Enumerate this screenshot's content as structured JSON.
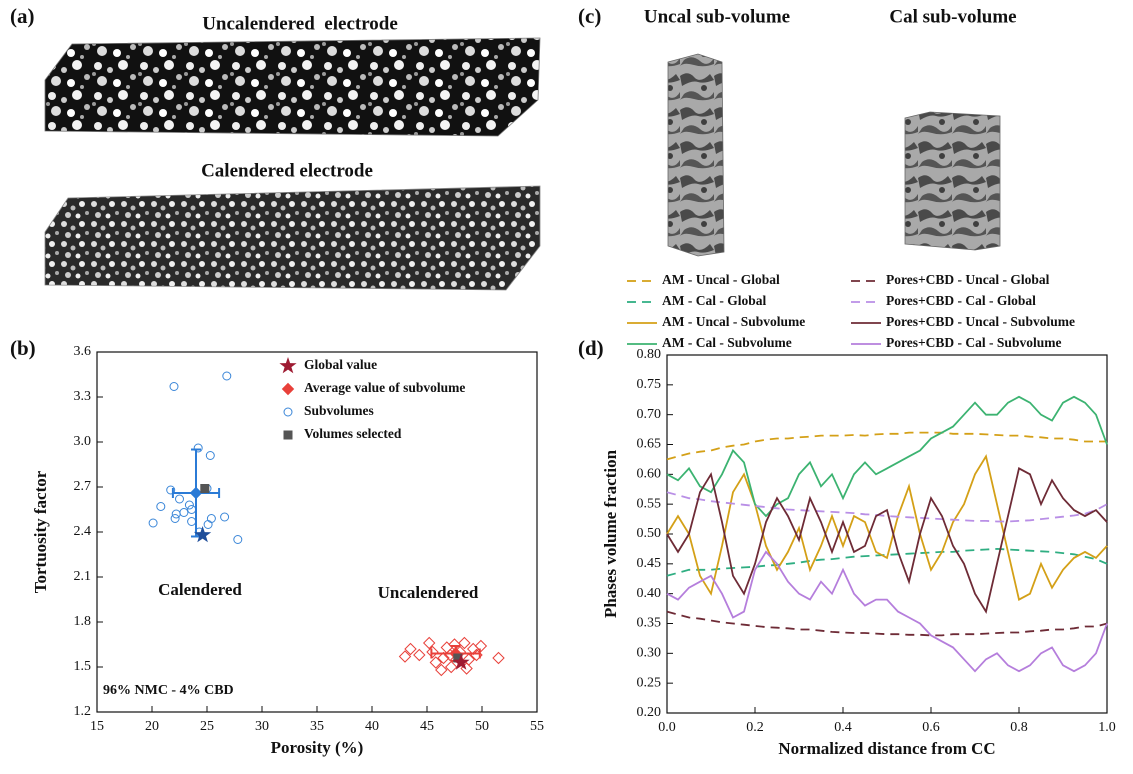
{
  "panel_labels": [
    "(a)",
    "(b)",
    "(c)",
    "(d)"
  ],
  "image_titles": [
    "Uncalendered  electrode",
    "Calendered electrode",
    "Uncal sub-volume",
    "Cal sub-volume"
  ],
  "chart_data": [
    {
      "type": "scatter",
      "xlabel": "Porosity (%)",
      "ylabel": "Tortuosity factor",
      "xlim": [
        15,
        55
      ],
      "ylim": [
        1.2,
        3.6
      ],
      "xticks": [
        15,
        20,
        25,
        30,
        35,
        40,
        45,
        50,
        55
      ],
      "yticks": [
        1.2,
        1.5,
        1.8,
        2.1,
        2.4,
        2.7,
        {
          "value": 3,
          "label": "3.0"
        },
        3.3,
        3.6
      ],
      "legend": "top-right",
      "annotations": [
        {
          "text": "Calendered",
          "color": "#2b7bd6"
        },
        {
          "text": "Uncalendered",
          "color": "#e8403a"
        },
        {
          "text": "96% NMC - 4% CBD",
          "color": "#111111"
        }
      ],
      "series": [
        {
          "name": "Global value",
          "marker": "star",
          "color": "#9e1b32",
          "point_colors": [
            "#1f4e9a",
            "#9e1b32"
          ],
          "x": [
            24.6,
            48.1
          ],
          "y": [
            2.38,
            1.53
          ]
        },
        {
          "name": "Average value of subvolume",
          "marker": "diamond",
          "color": "#e8403a",
          "point_colors": [
            "#2b7bd6",
            "#e8403a"
          ],
          "x": [
            24,
            47.6
          ],
          "y": [
            2.66,
            1.59
          ],
          "xerr": [
            2.1,
            2.2
          ],
          "yerr": [
            0.29,
            0.05
          ]
        },
        {
          "name": "Subvolumes",
          "marker": "circle-open",
          "color": "#3a86d8",
          "x": [
            22,
            26.8,
            24.2,
            25.3,
            21.7,
            25,
            22.5,
            20.8,
            23.4,
            23.6,
            22.2,
            22.9,
            22.1,
            23.6,
            25.4,
            25.1,
            26.6,
            20.1,
            24.3,
            27.8
          ],
          "y": [
            3.37,
            3.44,
            2.96,
            2.91,
            2.68,
            2.69,
            2.62,
            2.57,
            2.58,
            2.55,
            2.52,
            2.53,
            2.49,
            2.47,
            2.49,
            2.45,
            2.5,
            2.46,
            2.4,
            2.35
          ]
        },
        {
          "marker": "diamond-open",
          "color": "#e8403a",
          "x": [
            43,
            43.5,
            44.3,
            45.2,
            45.5,
            45.8,
            46.3,
            46.5,
            46.8,
            47.2,
            47.5,
            48,
            48.4,
            48.8,
            49.2,
            49.5,
            49.9,
            51.5,
            48.6,
            47.1
          ],
          "y": [
            1.57,
            1.62,
            1.58,
            1.66,
            1.6,
            1.53,
            1.48,
            1.56,
            1.63,
            1.5,
            1.65,
            1.6,
            1.66,
            1.55,
            1.62,
            1.58,
            1.64,
            1.56,
            1.49,
            1.58
          ]
        },
        {
          "name": "Volumes selected",
          "marker": "square",
          "color": "#555555",
          "x": [
            24.8,
            47.8
          ],
          "y": [
            2.69,
            1.56
          ]
        }
      ]
    },
    {
      "type": "line",
      "xlabel": "Normalized distance from CC",
      "ylabel": "Phases volume fraction",
      "xlim": [
        0,
        1
      ],
      "ylim": [
        0.2,
        0.8
      ],
      "xticks": [
        {
          "value": 0,
          "label": "0.0"
        },
        0.2,
        0.4,
        0.6,
        0.8,
        {
          "value": 1,
          "label": "1.0"
        }
      ],
      "yticks": [
        {
          "value": 0.2,
          "label": "0.20"
        },
        {
          "value": 0.25,
          "label": "0.25"
        },
        {
          "value": 0.3,
          "label": "0.30"
        },
        {
          "value": 0.35,
          "label": "0.35"
        },
        {
          "value": 0.4,
          "label": "0.40"
        },
        {
          "value": 0.45,
          "label": "0.45"
        },
        {
          "value": 0.5,
          "label": "0.50"
        },
        {
          "value": 0.55,
          "label": "0.55"
        },
        {
          "value": 0.6,
          "label": "0.60"
        },
        {
          "value": 0.65,
          "label": "0.65"
        },
        {
          "value": 0.7,
          "label": "0.70"
        },
        {
          "value": 0.75,
          "label": "0.75"
        },
        {
          "value": 0.8,
          "label": "0.80"
        }
      ],
      "legend": "top",
      "x": [
        0,
        0.025,
        0.05,
        0.075,
        0.1,
        0.125,
        0.15,
        0.175,
        0.2,
        0.225,
        0.25,
        0.275,
        0.3,
        0.325,
        0.35,
        0.375,
        0.4,
        0.425,
        0.45,
        0.475,
        0.5,
        0.525,
        0.55,
        0.575,
        0.6,
        0.625,
        0.65,
        0.675,
        0.7,
        0.725,
        0.75,
        0.775,
        0.8,
        0.825,
        0.85,
        0.875,
        0.9,
        0.925,
        0.95,
        0.975,
        1
      ],
      "series": [
        {
          "name": "AM - Uncal - Global",
          "color": "#d4a017",
          "dashed": true,
          "values": [
            0.625,
            0.63,
            0.635,
            0.638,
            0.64,
            0.645,
            0.648,
            0.65,
            0.655,
            0.658,
            0.66,
            0.66,
            0.662,
            0.663,
            0.665,
            0.665,
            0.665,
            0.666,
            0.665,
            0.667,
            0.668,
            0.668,
            0.67,
            0.67,
            0.67,
            0.67,
            0.668,
            0.668,
            0.668,
            0.667,
            0.666,
            0.665,
            0.665,
            0.663,
            0.662,
            0.66,
            0.66,
            0.658,
            0.655,
            0.655,
            0.655
          ]
        },
        {
          "name": "AM - Cal - Global",
          "color": "#2fae82",
          "dashed": true,
          "values": [
            0.43,
            0.435,
            0.44,
            0.44,
            0.44,
            0.442,
            0.443,
            0.444,
            0.445,
            0.447,
            0.448,
            0.45,
            0.452,
            0.455,
            0.457,
            0.458,
            0.46,
            0.462,
            0.463,
            0.464,
            0.465,
            0.466,
            0.467,
            0.468,
            0.469,
            0.47,
            0.47,
            0.472,
            0.473,
            0.474,
            0.475,
            0.474,
            0.473,
            0.472,
            0.471,
            0.47,
            0.468,
            0.466,
            0.462,
            0.458,
            0.45
          ]
        },
        {
          "name": "AM - Uncal - Subvolume",
          "color": "#d4a017",
          "dashed": false,
          "values": [
            0.5,
            0.53,
            0.5,
            0.43,
            0.4,
            0.48,
            0.57,
            0.6,
            0.55,
            0.48,
            0.44,
            0.47,
            0.51,
            0.44,
            0.48,
            0.53,
            0.48,
            0.53,
            0.52,
            0.47,
            0.46,
            0.53,
            0.58,
            0.5,
            0.44,
            0.47,
            0.52,
            0.55,
            0.6,
            0.63,
            0.55,
            0.47,
            0.39,
            0.4,
            0.45,
            0.41,
            0.44,
            0.46,
            0.47,
            0.46,
            0.48
          ]
        },
        {
          "name": "AM - Cal - Subvolume",
          "color": "#3cb371",
          "dashed": false,
          "values": [
            0.6,
            0.59,
            0.61,
            0.58,
            0.57,
            0.6,
            0.64,
            0.62,
            0.55,
            0.53,
            0.55,
            0.56,
            0.6,
            0.62,
            0.58,
            0.6,
            0.56,
            0.6,
            0.62,
            0.6,
            0.61,
            0.62,
            0.63,
            0.64,
            0.66,
            0.67,
            0.68,
            0.7,
            0.72,
            0.7,
            0.7,
            0.72,
            0.73,
            0.72,
            0.7,
            0.69,
            0.72,
            0.73,
            0.72,
            0.7,
            0.65
          ]
        },
        {
          "name": "Pores+CBD - Uncal - Global",
          "color": "#6e2b36",
          "dashed": true,
          "values": [
            0.37,
            0.365,
            0.36,
            0.358,
            0.355,
            0.352,
            0.35,
            0.348,
            0.346,
            0.344,
            0.343,
            0.342,
            0.34,
            0.34,
            0.338,
            0.336,
            0.335,
            0.334,
            0.334,
            0.333,
            0.332,
            0.332,
            0.331,
            0.331,
            0.33,
            0.33,
            0.332,
            0.332,
            0.332,
            0.333,
            0.334,
            0.335,
            0.335,
            0.337,
            0.338,
            0.34,
            0.34,
            0.342,
            0.345,
            0.345,
            0.35
          ]
        },
        {
          "name": "Pores+CBD - Cal - Global",
          "color": "#b98fe6",
          "dashed": true,
          "values": [
            0.57,
            0.565,
            0.56,
            0.558,
            0.555,
            0.553,
            0.551,
            0.549,
            0.547,
            0.545,
            0.543,
            0.541,
            0.54,
            0.539,
            0.538,
            0.537,
            0.536,
            0.535,
            0.533,
            0.532,
            0.53,
            0.529,
            0.528,
            0.527,
            0.526,
            0.525,
            0.524,
            0.523,
            0.522,
            0.522,
            0.521,
            0.521,
            0.522,
            0.523,
            0.525,
            0.527,
            0.529,
            0.531,
            0.534,
            0.54,
            0.55
          ]
        },
        {
          "name": "Pores+CBD - Uncal - Subvolume",
          "color": "#6e2b36",
          "dashed": false,
          "values": [
            0.5,
            0.47,
            0.5,
            0.57,
            0.6,
            0.52,
            0.43,
            0.4,
            0.45,
            0.52,
            0.56,
            0.53,
            0.49,
            0.56,
            0.52,
            0.47,
            0.52,
            0.47,
            0.48,
            0.53,
            0.54,
            0.47,
            0.42,
            0.5,
            0.56,
            0.53,
            0.48,
            0.45,
            0.4,
            0.37,
            0.45,
            0.53,
            0.61,
            0.6,
            0.55,
            0.59,
            0.56,
            0.54,
            0.53,
            0.54,
            0.52
          ]
        },
        {
          "name": "Pores+CBD - Cal - Subvolume",
          "color": "#b57edc",
          "dashed": false,
          "values": [
            0.4,
            0.39,
            0.41,
            0.42,
            0.43,
            0.4,
            0.36,
            0.37,
            0.44,
            0.47,
            0.45,
            0.42,
            0.4,
            0.39,
            0.42,
            0.4,
            0.44,
            0.4,
            0.38,
            0.39,
            0.39,
            0.37,
            0.36,
            0.35,
            0.33,
            0.32,
            0.31,
            0.29,
            0.27,
            0.29,
            0.3,
            0.28,
            0.27,
            0.28,
            0.3,
            0.31,
            0.28,
            0.27,
            0.28,
            0.3,
            0.35
          ]
        }
      ]
    }
  ]
}
